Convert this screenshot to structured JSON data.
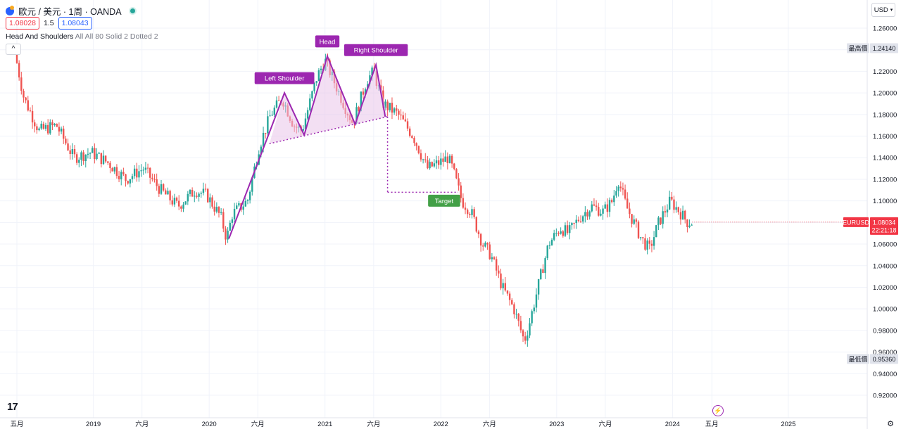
{
  "header": {
    "symbol_title": "歐元 / 美元 · 1周 · OANDA",
    "sell_price": "1.08028",
    "spread": "1.5",
    "buy_price": "1.08043",
    "indicator_name": "Head And Shoulders",
    "indicator_params": "All All 80 Solid 2 Dotted 2",
    "currency_button": "USD"
  },
  "colors": {
    "up": "#26a69a",
    "down": "#ef5350",
    "pattern": "#9c27b0",
    "pattern_fill": "#e9c5ea",
    "target_green": "#43a047",
    "last_price_bg": "#f23645"
  },
  "chart_data": {
    "type": "candlestick",
    "symbol": "EURUSD",
    "timeframe": "1周",
    "ylim": [
      0.915,
      1.275
    ],
    "yticks": [
      "1.26000",
      "1.24000",
      "1.22000",
      "1.20000",
      "1.18000",
      "1.16000",
      "1.14000",
      "1.12000",
      "1.10000",
      "1.08000",
      "1.06000",
      "1.04000",
      "1.02000",
      "1.00000",
      "0.98000",
      "0.96000",
      "0.94000",
      "0.92000"
    ],
    "xtick_labels": [
      "五月",
      "2019",
      "六月",
      "2020",
      "六月",
      "2021",
      "六月",
      "2022",
      "六月",
      "2023",
      "六月",
      "2024",
      "五月",
      "2025"
    ],
    "x_time_range": [
      2018.34,
      2025.28
    ],
    "xtick_positions": [
      2018.34,
      2019.0,
      2019.42,
      2020.0,
      2020.42,
      2021.0,
      2021.42,
      2022.0,
      2022.42,
      2023.0,
      2023.42,
      2024.0,
      2024.34,
      2025.0
    ],
    "anchors": [
      [
        2018.34,
        1.238
      ],
      [
        2018.42,
        1.195
      ],
      [
        2018.55,
        1.165
      ],
      [
        2018.7,
        1.17
      ],
      [
        2018.85,
        1.14
      ],
      [
        2019.0,
        1.145
      ],
      [
        2019.15,
        1.135
      ],
      [
        2019.3,
        1.12
      ],
      [
        2019.45,
        1.13
      ],
      [
        2019.6,
        1.11
      ],
      [
        2019.75,
        1.095
      ],
      [
        2019.9,
        1.11
      ],
      [
        2020.0,
        1.105
      ],
      [
        2020.12,
        1.085
      ],
      [
        2020.17,
        1.065
      ],
      [
        2020.22,
        1.088
      ],
      [
        2020.35,
        1.1
      ],
      [
        2020.45,
        1.15
      ],
      [
        2020.55,
        1.18
      ],
      [
        2020.65,
        1.195
      ],
      [
        2020.75,
        1.17
      ],
      [
        2020.82,
        1.165
      ],
      [
        2020.95,
        1.215
      ],
      [
        2021.02,
        1.23
      ],
      [
        2021.18,
        1.19
      ],
      [
        2021.26,
        1.172
      ],
      [
        2021.38,
        1.212
      ],
      [
        2021.44,
        1.22
      ],
      [
        2021.52,
        1.19
      ],
      [
        2021.65,
        1.18
      ],
      [
        2021.78,
        1.16
      ],
      [
        2021.9,
        1.13
      ],
      [
        2022.0,
        1.135
      ],
      [
        2022.08,
        1.14
      ],
      [
        2022.12,
        1.13
      ],
      [
        2022.2,
        1.1
      ],
      [
        2022.28,
        1.09
      ],
      [
        2022.38,
        1.06
      ],
      [
        2022.45,
        1.05
      ],
      [
        2022.55,
        1.02
      ],
      [
        2022.65,
        1.0
      ],
      [
        2022.74,
        0.97
      ],
      [
        2022.78,
        0.985
      ],
      [
        2022.88,
        1.03
      ],
      [
        2022.95,
        1.06
      ],
      [
        2023.05,
        1.075
      ],
      [
        2023.12,
        1.07
      ],
      [
        2023.22,
        1.085
      ],
      [
        2023.32,
        1.095
      ],
      [
        2023.42,
        1.09
      ],
      [
        2023.5,
        1.1
      ],
      [
        2023.55,
        1.12
      ],
      [
        2023.62,
        1.095
      ],
      [
        2023.75,
        1.065
      ],
      [
        2023.82,
        1.055
      ],
      [
        2023.9,
        1.08
      ],
      [
        2024.0,
        1.1
      ],
      [
        2024.08,
        1.09
      ],
      [
        2024.15,
        1.08
      ],
      [
        2024.17,
        1.0803
      ]
    ],
    "last_price": {
      "label": "EURUSD",
      "value": "1.08034",
      "countdown": "22:21:18"
    },
    "high_marker": {
      "label": "最高價",
      "value": "1.24140"
    },
    "low_marker": {
      "label": "最低價",
      "value": "0.95360"
    },
    "pattern": {
      "name": "Head And Shoulders",
      "points": [
        [
          2020.17,
          1.065
        ],
        [
          2020.65,
          1.2
        ],
        [
          2020.82,
          1.161
        ],
        [
          2021.02,
          1.234
        ],
        [
          2021.26,
          1.171
        ],
        [
          2021.44,
          1.226
        ],
        [
          2021.52,
          1.178
        ]
      ],
      "neckline_start": [
        2020.52,
        1.153
      ],
      "neckline_end": [
        2021.54,
        1.178
      ],
      "target_drop_x": 2021.54,
      "target_y": 1.108,
      "target_end_x": 2022.15,
      "labels": {
        "left_shoulder": "Left Shoulder",
        "head": "Head",
        "right_shoulder": "Right Shoulder",
        "target": "Target"
      }
    }
  }
}
